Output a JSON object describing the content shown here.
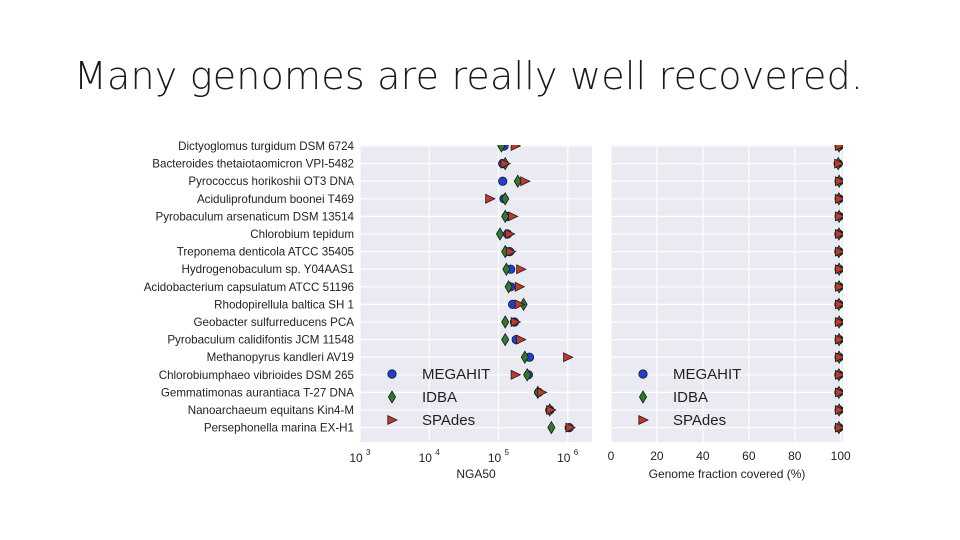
{
  "slide": {
    "title": "Many genomes are really well recovered."
  },
  "chart_data": [
    {
      "type": "scatter",
      "xscale": "log",
      "xlabel": "NGA50",
      "xlim_log10": [
        3,
        6.35
      ],
      "xticks": [
        {
          "label": "10",
          "exp": "3",
          "log10": 3
        },
        {
          "label": "10",
          "exp": "4",
          "log10": 4
        },
        {
          "label": "10",
          "exp": "5",
          "log10": 5
        },
        {
          "label": "10",
          "exp": "6",
          "log10": 6
        }
      ],
      "categories": [
        "Dictyoglomus turgidum DSM 6724",
        "Bacteroides thetaiotaomicron VPI-5482",
        "Pyrococcus horikoshii OT3 DNA",
        "Aciduliprofundum boonei T469",
        "Pyrobaculum arsenaticum DSM 13514",
        "Chlorobium tepidum",
        "Treponema denticola ATCC 35405",
        "Hydrogenobaculum sp. Y04AAS1",
        "Acidobacterium capsulatum ATCC 51196",
        "Rhodopirellula baltica SH 1",
        "Geobacter sulfurreducens PCA",
        "Pyrobaculum calidifontis JCM 11548",
        "Methanopyrus kandleri AV19",
        "Chlorobiumphaeo vibrioides DSM 265",
        "Gemmatimonas aurantiaca T-27 DNA",
        "Nanoarchaeum equitans Kin4-M",
        "Persephonella marina EX-H1"
      ],
      "series": [
        {
          "name": "MEGAHIT",
          "marker": "circle",
          "color": "#1f3fd1",
          "values": [
            120000,
            115000,
            115000,
            120000,
            130000,
            135000,
            145000,
            150000,
            150000,
            160000,
            170000,
            180000,
            280000,
            270000,
            380000,
            550000,
            1050000
          ]
        },
        {
          "name": "IDBA",
          "marker": "diamond",
          "color": "#2f7a2f",
          "values": [
            110000,
            125000,
            190000,
            125000,
            125000,
            105000,
            125000,
            130000,
            140000,
            230000,
            125000,
            125000,
            240000,
            260000,
            370000,
            550000,
            580000
          ]
        },
        {
          "name": "SPAdes",
          "marker": "triangle-right",
          "color": "#c0392b",
          "values": [
            175000,
            125000,
            240000,
            75000,
            160000,
            145000,
            150000,
            210000,
            200000,
            200000,
            175000,
            210000,
            1000000,
            175000,
            420000,
            570000,
            1080000
          ]
        }
      ],
      "legend": {
        "position": "lower-left",
        "labels": [
          "MEGAHIT",
          "IDBA",
          "SPAdes"
        ]
      }
    },
    {
      "type": "scatter",
      "xlabel": "Genome fraction covered (%)",
      "xlim": [
        0,
        101
      ],
      "xticks": [
        "0",
        "20",
        "40",
        "60",
        "80",
        "100"
      ],
      "categories": "shared",
      "series": [
        {
          "name": "MEGAHIT",
          "marker": "circle",
          "color": "#1f3fd1",
          "values": [
            99.3,
            98.9,
            99.3,
            99.3,
            99.3,
            99.2,
            99.2,
            99.3,
            99.3,
            99.2,
            99.3,
            99.3,
            99.3,
            99.2,
            99.2,
            99.3,
            99.2
          ]
        },
        {
          "name": "IDBA",
          "marker": "diamond",
          "color": "#2f7a2f",
          "values": [
            99.3,
            98.9,
            99.3,
            99.2,
            99.3,
            99.2,
            99.2,
            99.3,
            99.3,
            99.2,
            99.3,
            99.3,
            99.3,
            99.2,
            99.2,
            99.3,
            99.2
          ]
        },
        {
          "name": "SPAdes",
          "marker": "triangle-right",
          "color": "#c0392b",
          "values": [
            99.5,
            99.2,
            99.5,
            99.5,
            99.5,
            99.5,
            99.5,
            99.5,
            99.5,
            99.5,
            99.5,
            99.5,
            99.5,
            99.5,
            99.5,
            99.5,
            99.5
          ]
        }
      ],
      "legend": {
        "position": "lower-left",
        "labels": [
          "MEGAHIT",
          "IDBA",
          "SPAdes"
        ]
      }
    }
  ]
}
